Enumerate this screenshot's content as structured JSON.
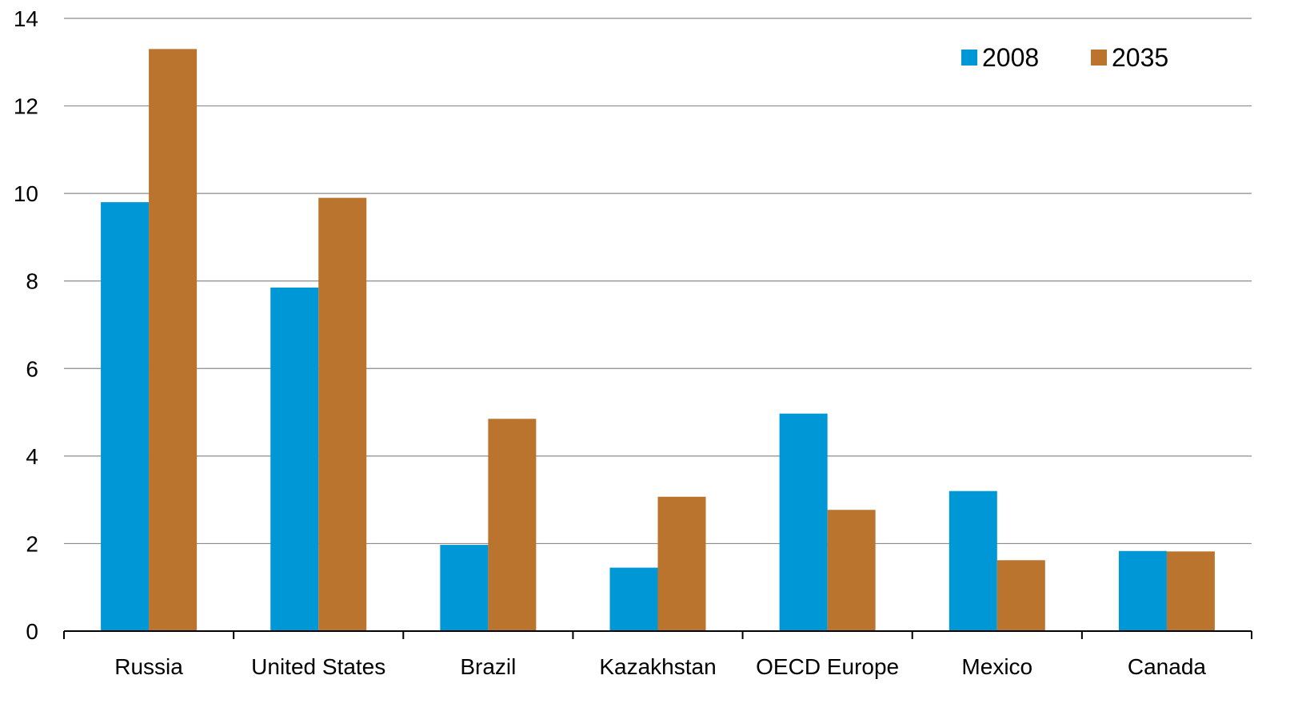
{
  "chart_data": {
    "type": "bar",
    "title": "",
    "xlabel": "",
    "ylabel": "",
    "categories": [
      "Russia",
      "United States",
      "Brazil",
      "Kazakhstan",
      "OECD Europe",
      "Mexico",
      "Canada"
    ],
    "series": [
      {
        "name": "2008",
        "color": "#0097D6",
        "values": [
          9.8,
          7.85,
          1.97,
          1.45,
          4.97,
          3.2,
          1.83
        ]
      },
      {
        "name": "2035",
        "color": "#BB742D",
        "values": [
          13.3,
          9.9,
          4.85,
          3.07,
          2.77,
          1.62,
          1.82
        ]
      }
    ],
    "ylim": [
      0,
      14
    ],
    "yticks": [
      0,
      2,
      4,
      6,
      8,
      10,
      12,
      14
    ],
    "grid": true,
    "legend_position": "top-right"
  }
}
